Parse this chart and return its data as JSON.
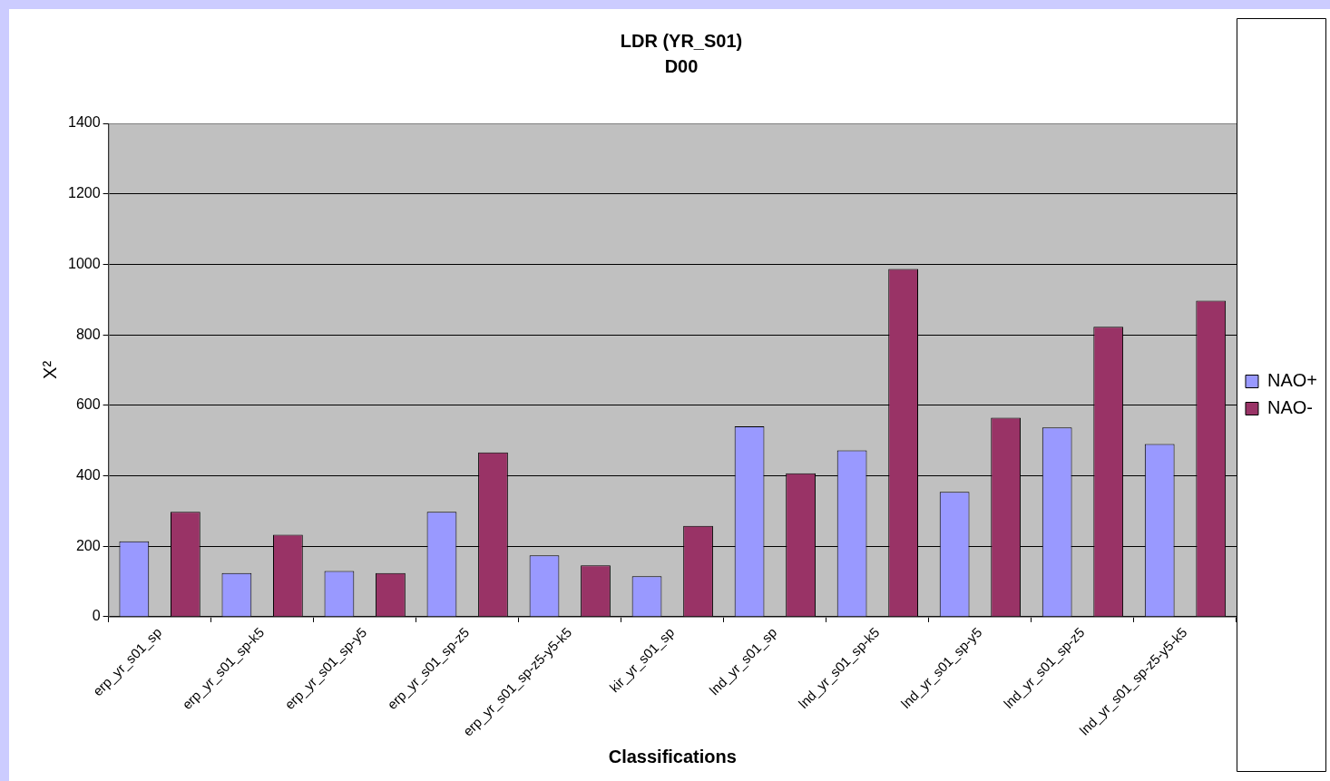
{
  "chart_data": {
    "type": "bar",
    "title": "LDR (YR_S01)",
    "subtitle": "D00",
    "xlabel": "Classifications",
    "ylabel": "X²",
    "categories": [
      "erp_yr_s01_sp",
      "erp_yr_s01_sp-k5",
      "erp_yr_s01_sp-y5",
      "erp_yr_s01_sp-z5",
      "erp_yr_s01_sp-z5-y5-k5",
      "kir_yr_s01_sp",
      "lnd_yr_s01_sp",
      "lnd_yr_s01_sp-k5",
      "lnd_yr_s01_sp-y5",
      "lnd_yr_s01_sp-z5",
      "lnd_yr_s01_sp-z5-y5-k5"
    ],
    "series": [
      {
        "name": "NAO+",
        "color": "#9999ff",
        "values": [
          214,
          124,
          130,
          298,
          174,
          115,
          540,
          472,
          354,
          537,
          490
        ]
      },
      {
        "name": "NAO-",
        "color": "#993366",
        "values": [
          298,
          233,
          124,
          466,
          146,
          258,
          407,
          987,
          565,
          823,
          897
        ]
      }
    ],
    "ylim": [
      0,
      1400
    ],
    "yticks": [
      0,
      200,
      400,
      600,
      800,
      1000,
      1200,
      1400
    ],
    "grid": "y",
    "legend": "right"
  }
}
